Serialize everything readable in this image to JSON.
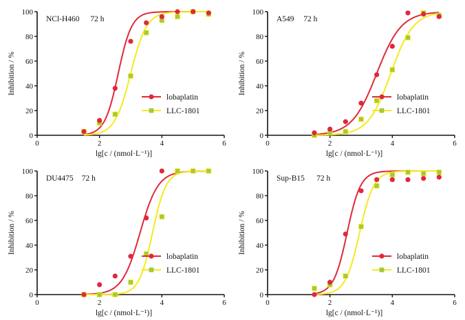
{
  "colors": {
    "lobaplatin": "#e0283a",
    "llc": "#f5ea1c",
    "llc_marker": "#a5c93a",
    "axis": "#111111"
  },
  "chart_data": [
    {
      "type": "scatter",
      "title": "NCl-H460",
      "time_label": "72 h",
      "xlabel": "lg[c / (nmol·L⁻¹)]",
      "ylabel": "Inhibition / %",
      "xlim": [
        0,
        6
      ],
      "ylim": [
        0,
        100
      ],
      "xticks": [
        "0",
        "2",
        "4",
        "6"
      ],
      "yticks": [
        "0",
        "20",
        "40",
        "60",
        "80",
        "100"
      ],
      "legend_position": "center-right",
      "x": [
        1.5,
        2.0,
        2.5,
        3.0,
        3.5,
        4.0,
        4.5,
        5.0,
        5.5
      ],
      "series": [
        {
          "name": "lobaplatin",
          "marker": "circle",
          "values": [
            3,
            12,
            38,
            76,
            91,
            96,
            100,
            100,
            99
          ],
          "fit": {
            "ic50_log": 2.6,
            "hill": 2.0
          }
        },
        {
          "name": "LLC-1801",
          "marker": "square",
          "values": [
            3,
            10,
            17,
            48,
            83,
            93,
            96,
            100,
            98
          ],
          "fit": {
            "ic50_log": 3.0,
            "hill": 1.7
          }
        }
      ]
    },
    {
      "type": "scatter",
      "title": "A549",
      "time_label": "72 h",
      "xlabel": "lg[c / (nmol·L⁻¹)]",
      "ylabel": "Inhibition / %",
      "xlim": [
        0,
        6
      ],
      "ylim": [
        0,
        100
      ],
      "xticks": [
        "0",
        "2",
        "4",
        "6"
      ],
      "yticks": [
        "0",
        "20",
        "40",
        "60",
        "80",
        "100"
      ],
      "legend_position": "center-right",
      "x": [
        1.5,
        2.0,
        2.5,
        3.0,
        3.5,
        4.0,
        4.5,
        5.0,
        5.5
      ],
      "series": [
        {
          "name": "lobaplatin",
          "marker": "circle",
          "values": [
            2,
            5,
            11,
            26,
            49,
            72,
            99,
            98,
            96
          ],
          "fit": {
            "ic50_log": 3.5,
            "hill": 1.1
          }
        },
        {
          "name": "LLC-1801",
          "marker": "square",
          "values": [
            0,
            2,
            3,
            13,
            28,
            53,
            79,
            99,
            97
          ],
          "fit": {
            "ic50_log": 3.95,
            "hill": 1.2
          }
        }
      ]
    },
    {
      "type": "scatter",
      "title": "DU4475",
      "time_label": "72 h",
      "xlabel": "lg[c / (nmol·L⁻¹)]",
      "ylabel": "Inhibition / %",
      "xlim": [
        0,
        6
      ],
      "ylim": [
        0,
        100
      ],
      "xticks": [
        "0",
        "2",
        "4",
        "6"
      ],
      "yticks": [
        "0",
        "20",
        "40",
        "60",
        "80",
        "100"
      ],
      "legend_position": "center-right",
      "x": [
        1.5,
        2.0,
        2.5,
        3.0,
        3.5,
        4.0,
        4.5,
        5.0,
        5.5
      ],
      "series": [
        {
          "name": "lobaplatin",
          "marker": "circle",
          "values": [
            0,
            8,
            15,
            31,
            62,
            100,
            null,
            null,
            null
          ],
          "fit": {
            "ic50_log": 3.3,
            "hill": 1.5
          }
        },
        {
          "name": "LLC-1801",
          "marker": "square",
          "values": [
            0,
            0,
            0,
            10,
            33,
            63,
            100,
            100,
            100
          ],
          "fit": {
            "ic50_log": 3.7,
            "hill": 2.0
          }
        }
      ]
    },
    {
      "type": "scatter",
      "title": "Sup-B15",
      "time_label": "72 h",
      "xlabel": "lg[c / (nmol·L⁻¹)]",
      "ylabel": "Inhibition / %",
      "xlim": [
        0,
        6
      ],
      "ylim": [
        0,
        100
      ],
      "xticks": [
        "0",
        "2",
        "4",
        "6"
      ],
      "yticks": [
        "0",
        "20",
        "40",
        "60",
        "80",
        "100"
      ],
      "legend_position": "center-right",
      "x": [
        1.5,
        2.0,
        2.5,
        3.0,
        3.5,
        4.0,
        4.5,
        5.0,
        5.5
      ],
      "series": [
        {
          "name": "lobaplatin",
          "marker": "circle",
          "values": [
            0,
            10,
            49,
            84,
            93,
            93,
            93,
            94,
            95
          ],
          "fit": {
            "ic50_log": 2.55,
            "hill": 2.0
          }
        },
        {
          "name": "LLC-1801",
          "marker": "square",
          "values": [
            5,
            8,
            15,
            55,
            88,
            97,
            99,
            98,
            99
          ],
          "fit": {
            "ic50_log": 2.95,
            "hill": 1.9
          }
        }
      ]
    }
  ]
}
